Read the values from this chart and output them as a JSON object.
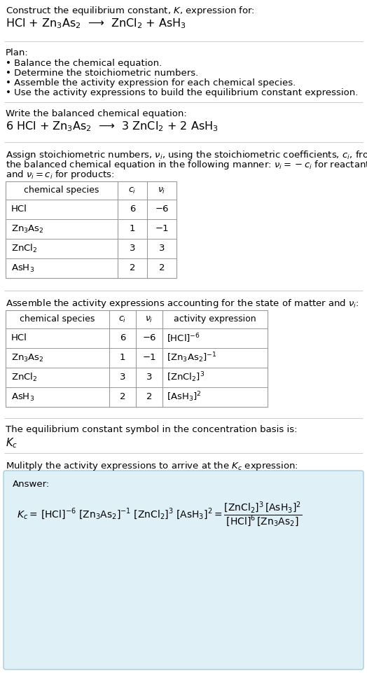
{
  "title_line1": "Construct the equilibrium constant, $K$, expression for:",
  "title_line2": "HCl + Zn$_3$As$_2$  ⟶  ZnCl$_2$ + AsH$_3$",
  "plan_header": "Plan:",
  "plan_items": [
    "• Balance the chemical equation.",
    "• Determine the stoichiometric numbers.",
    "• Assemble the activity expression for each chemical species.",
    "• Use the activity expressions to build the equilibrium constant expression."
  ],
  "balanced_header": "Write the balanced chemical equation:",
  "balanced_eq": "6 HCl + Zn$_3$As$_2$  ⟶  3 ZnCl$_2$ + 2 AsH$_3$",
  "stoich_intro": "Assign stoichiometric numbers, $\\nu_i$, using the stoichiometric coefficients, $c_i$, from\nthe balanced chemical equation in the following manner: $\\nu_i = -c_i$ for reactants\nand $\\nu_i = c_i$ for products:",
  "table1_headers": [
    "chemical species",
    "$c_i$",
    "$\\nu_i$"
  ],
  "table1_rows": [
    [
      "HCl",
      "6",
      "−6"
    ],
    [
      "Zn$_3$As$_2$",
      "1",
      "−1"
    ],
    [
      "ZnCl$_2$",
      "3",
      "3"
    ],
    [
      "AsH$_3$",
      "2",
      "2"
    ]
  ],
  "activity_intro": "Assemble the activity expressions accounting for the state of matter and $\\nu_i$:",
  "table2_headers": [
    "chemical species",
    "$c_i$",
    "$\\nu_i$",
    "activity expression"
  ],
  "table2_rows": [
    [
      "HCl",
      "6",
      "−6",
      "[HCl]$^{-6}$"
    ],
    [
      "Zn$_3$As$_2$",
      "1",
      "−1",
      "[Zn$_3$As$_2$]$^{-1}$"
    ],
    [
      "ZnCl$_2$",
      "3",
      "3",
      "[ZnCl$_2$]$^3$"
    ],
    [
      "AsH$_3$",
      "2",
      "2",
      "[AsH$_3$]$^2$"
    ]
  ],
  "kc_intro": "The equilibrium constant symbol in the concentration basis is:",
  "kc_symbol": "$K_c$",
  "multiply_intro": "Mulitply the activity expressions to arrive at the $K_c$ expression:",
  "answer_label": "Answer:",
  "bg_color": "#ffffff",
  "text_color": "#000000",
  "table_border_color": "#999999",
  "answer_box_color": "#dff0f7",
  "answer_box_border": "#aaccdd",
  "section_line_color": "#cccccc",
  "font_size_body": 9.5,
  "font_size_equation": 11.5,
  "font_size_header": 9.5
}
